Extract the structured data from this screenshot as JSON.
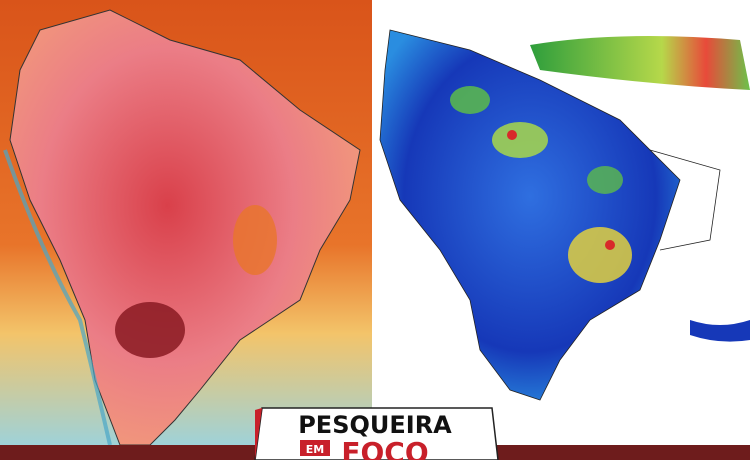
{
  "logo": {
    "title": "PESQUEIRA",
    "prefix": "EM",
    "word": "FOCO"
  }
}
